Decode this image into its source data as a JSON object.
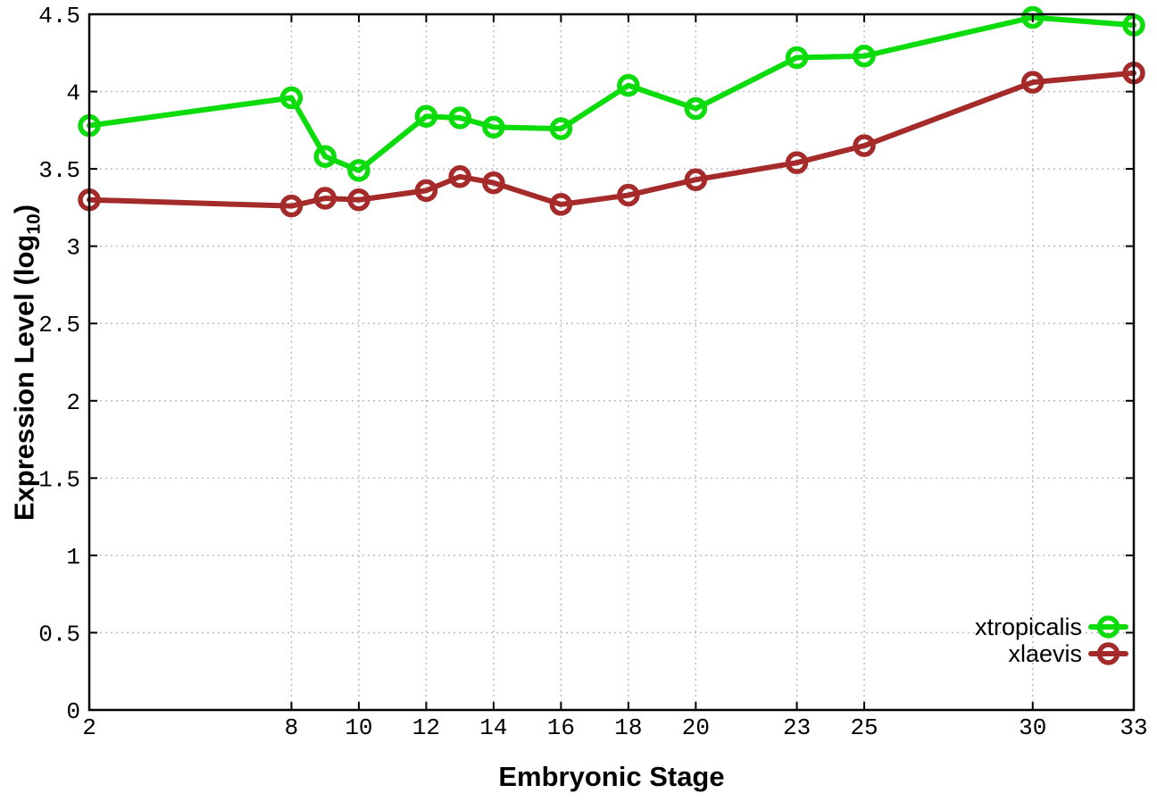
{
  "page": {
    "background": "#ffffff"
  },
  "chart_data": {
    "type": "line",
    "title": "",
    "xlabel": "Embryonic Stage",
    "ylabel": "Expression Level (log10)",
    "ylabel_parts": {
      "prefix": "Expression Level (log",
      "subscript": "10",
      "suffix": ")"
    },
    "xlim": [
      2,
      33
    ],
    "ylim": [
      0,
      4.5
    ],
    "xticks": [
      2,
      8,
      10,
      12,
      14,
      16,
      18,
      20,
      23,
      25,
      30,
      33
    ],
    "yticks": [
      0,
      0.5,
      1,
      1.5,
      2,
      2.5,
      3,
      3.5,
      4,
      4.5
    ],
    "grid": true,
    "legend_position": "bottom-right",
    "x": [
      2,
      8,
      9,
      10,
      12,
      13,
      14,
      16,
      18,
      20,
      23,
      25,
      30,
      33
    ],
    "series": [
      {
        "name": "xtropicalis",
        "color": "#0cdc0c",
        "marker": "open-circle",
        "values": [
          3.78,
          3.96,
          3.58,
          3.49,
          3.84,
          3.83,
          3.77,
          3.76,
          4.04,
          3.89,
          4.22,
          4.23,
          4.48,
          4.43
        ]
      },
      {
        "name": "xlaevis",
        "color": "#a52a2a",
        "marker": "open-circle",
        "values": [
          3.3,
          3.26,
          3.31,
          3.3,
          3.36,
          3.45,
          3.41,
          3.27,
          3.33,
          3.43,
          3.54,
          3.65,
          4.06,
          4.12
        ]
      }
    ],
    "axis_color": "#000000",
    "grid_color": "#bdbdbd"
  }
}
